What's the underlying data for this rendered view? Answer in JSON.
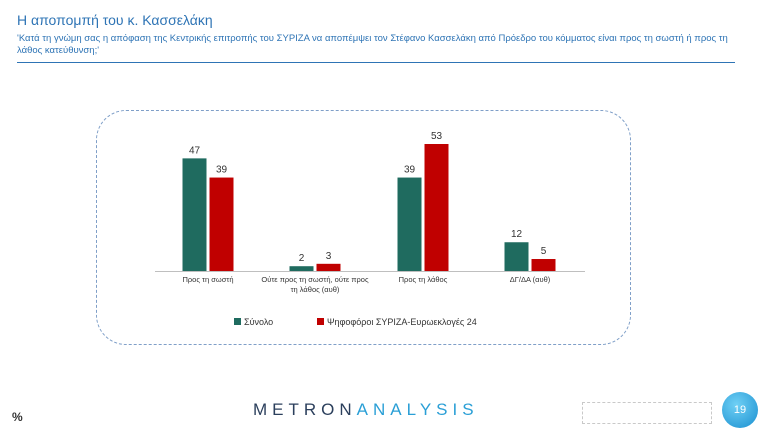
{
  "header": {
    "title": "Η αποπομπή του κ. Κασσελάκη",
    "subtitle": "'Κατά τη γνώμη σας η απόφαση της Κεντρικής επιτροπής του ΣΥΡΙΖΑ να αποπέμψει τον Στέφανο Κασσελάκη από Πρόεδρο του κόμματος είναι προς τη σωστή ή προς τη λάθος κατεύθυνση;'"
  },
  "chart_data": {
    "type": "bar",
    "categories": [
      [
        "Προς τη σωστή"
      ],
      [
        "Ούτε προς τη σωστή, ούτε προς",
        "τη λάθος (αυθ)"
      ],
      [
        "Προς τη λάθος"
      ],
      [
        "ΔΓ/ΔΑ (αυθ)"
      ]
    ],
    "series": [
      {
        "name": "Σύνολο",
        "values": [
          47,
          2,
          39,
          12
        ],
        "color": "#1f6b5f"
      },
      {
        "name": "Ψηφοφόροι ΣΥΡΙΖΑ-Ευρωεκλογές 24",
        "values": [
          39,
          3,
          53,
          5
        ],
        "color": "#c00000"
      }
    ],
    "ylim": [
      0,
      60
    ],
    "grid": false,
    "legend": "bottom"
  },
  "footer": {
    "percent_label": "%",
    "logo_part1": "METRON",
    "logo_part2": "ANALYSIS",
    "page_number": "19"
  },
  "colors": {
    "accent": "#2e74b5"
  }
}
